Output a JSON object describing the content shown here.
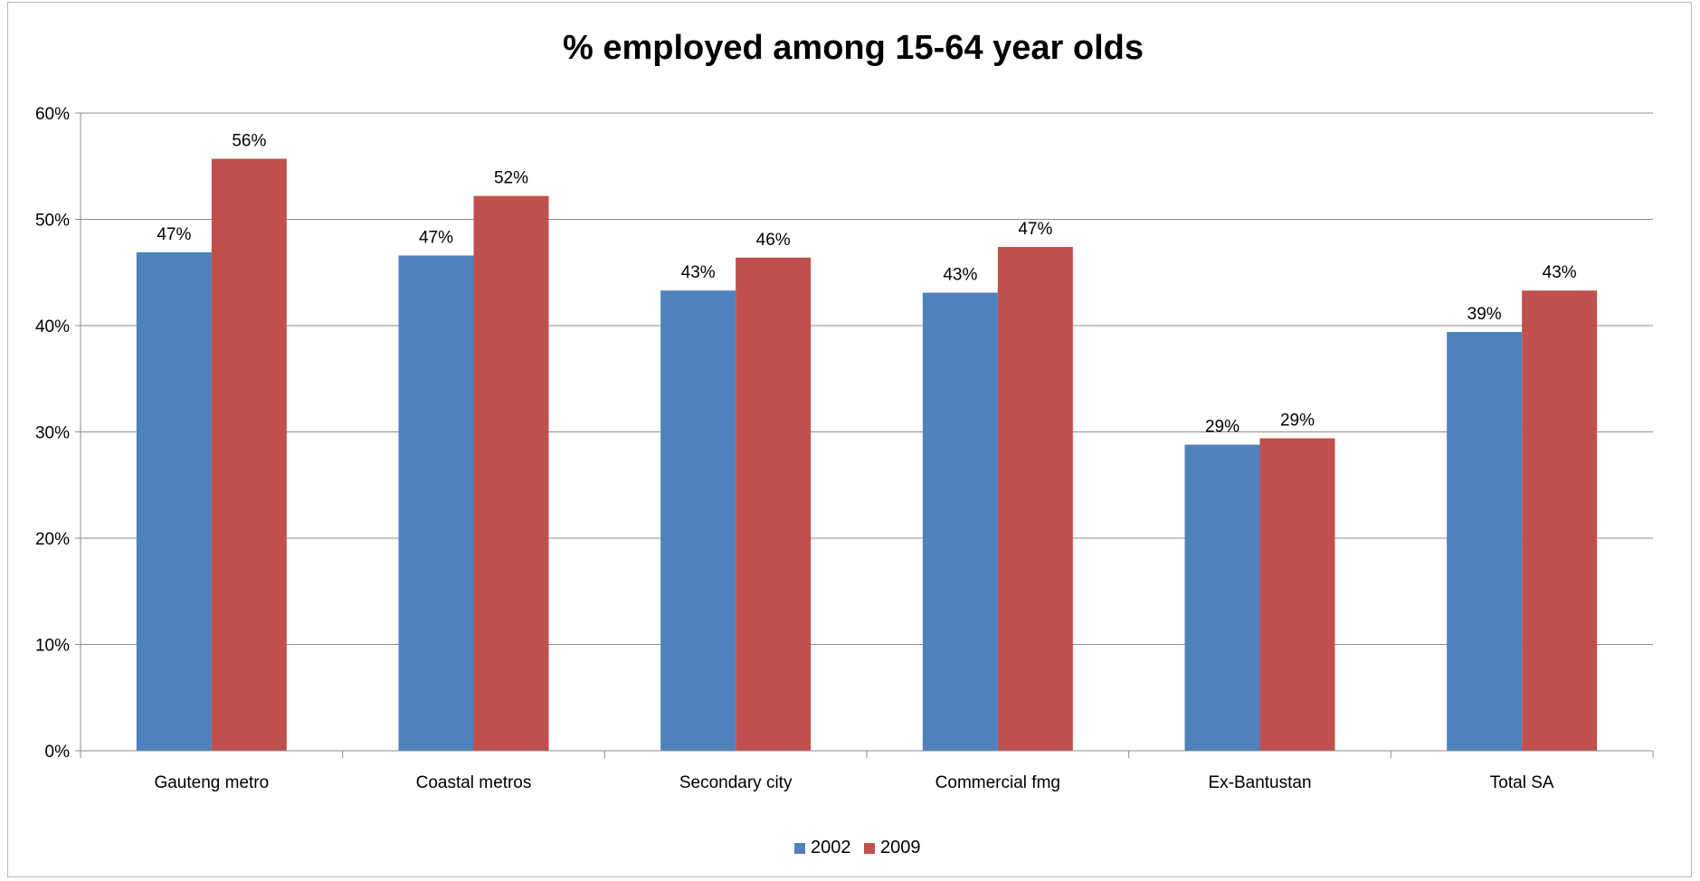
{
  "chart_data": {
    "type": "bar",
    "title": "% employed among 15-64 year olds",
    "categories": [
      "Gauteng metro",
      "Coastal metros",
      "Secondary city",
      "Commercial fmg",
      "Ex-Bantustan",
      "Total SA"
    ],
    "series": [
      {
        "name": "2002",
        "color": "#4f81bd",
        "values": [
          0.469,
          0.466,
          0.433,
          0.431,
          0.288,
          0.394
        ],
        "labels": [
          "47%",
          "47%",
          "43%",
          "43%",
          "29%",
          "39%"
        ]
      },
      {
        "name": "2009",
        "color": "#c0504d",
        "values": [
          0.557,
          0.522,
          0.464,
          0.474,
          0.294,
          0.433
        ],
        "labels": [
          "56%",
          "52%",
          "46%",
          "47%",
          "29%",
          "43%"
        ]
      }
    ],
    "ylim": [
      0,
      0.6
    ],
    "yticks": [
      0,
      0.1,
      0.2,
      0.3,
      0.4,
      0.5,
      0.6
    ],
    "ytick_labels": [
      "0%",
      "10%",
      "20%",
      "30%",
      "40%",
      "50%",
      "60%"
    ],
    "grid": true,
    "legend_position": "bottom-center",
    "xlabel": "",
    "ylabel": ""
  }
}
